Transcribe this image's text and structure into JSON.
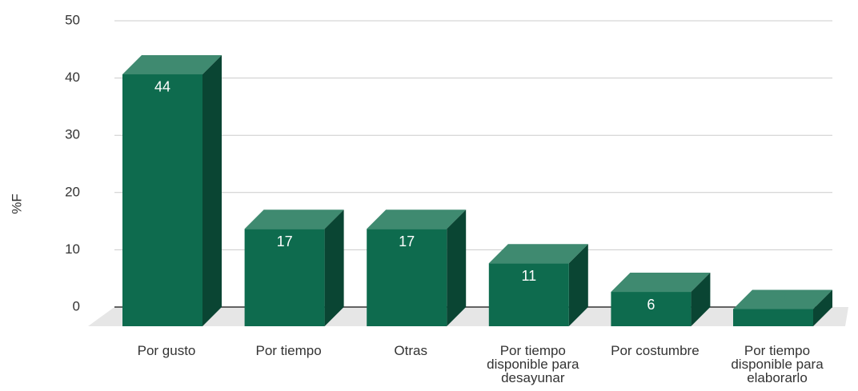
{
  "chart_data": {
    "type": "bar3d",
    "y_label": "%F",
    "categories": [
      "Por gusto",
      "Por tiempo",
      "Otras",
      "Por tiempo disponible para desayunar",
      "Por costumbre",
      "Por tiempo disponible para elaborarlo"
    ],
    "values": [
      44,
      17,
      17,
      11,
      6,
      3
    ],
    "color": "#0e6b4e",
    "ylim": [
      0,
      50
    ],
    "yticks": [
      0,
      10,
      20,
      30,
      40,
      50
    ],
    "grid": true
  }
}
